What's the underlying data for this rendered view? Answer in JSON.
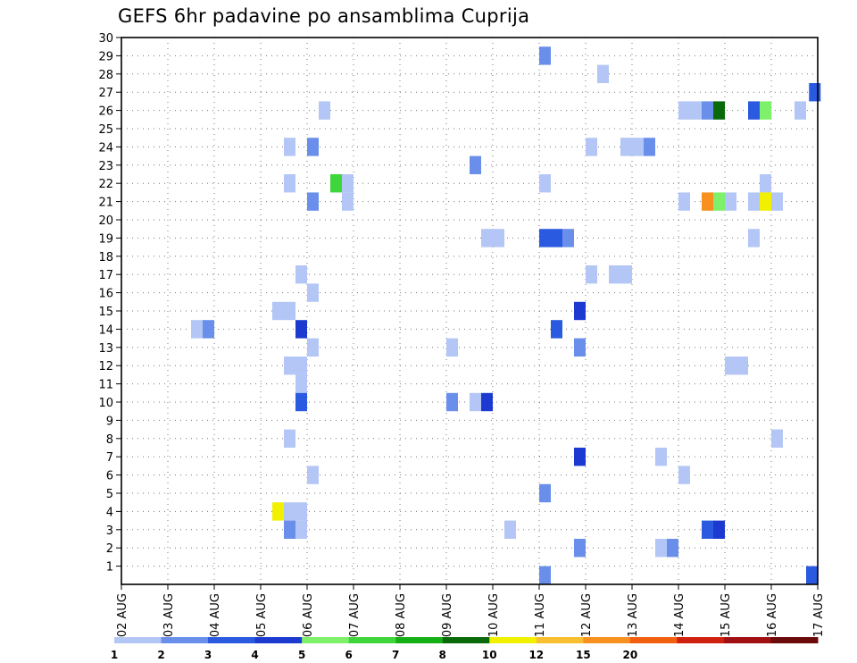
{
  "chart_data": {
    "type": "heatmap",
    "title": "GEFS 6hr padavine po ansamblima Cuprija",
    "xlabel": "",
    "ylabel": "",
    "x_tick_labels": [
      "02 AUG",
      "03 AUG",
      "04 AUG",
      "05 AUG",
      "06 AUG",
      "07 AUG",
      "08 AUG",
      "09 AUG",
      "10 AUG",
      "11 AUG",
      "12 AUG",
      "13 AUG",
      "14 AUG",
      "15 AUG",
      "16 AUG",
      "17 AUG"
    ],
    "x_unit": "6-hour step from 02 AUG 00Z",
    "x_range": [
      0,
      60
    ],
    "y_tick_labels": [
      "1",
      "2",
      "3",
      "4",
      "5",
      "6",
      "7",
      "8",
      "9",
      "10",
      "11",
      "12",
      "13",
      "14",
      "15",
      "16",
      "17",
      "18",
      "19",
      "20",
      "21",
      "22",
      "23",
      "24",
      "25",
      "26",
      "27",
      "28",
      "29",
      "30"
    ],
    "y_range": [
      0,
      30
    ],
    "grid": true,
    "colorbar": {
      "colors": [
        "#b3c6f5",
        "#6a8fea",
        "#2a5ae0",
        "#1c3ad0",
        "#7ef06a",
        "#3ed63a",
        "#16b016",
        "#0a6a0a",
        "#f0f000",
        "#f8c030",
        "#f89020",
        "#f06010",
        "#d02010",
        "#a01010",
        "#6a0a0a"
      ],
      "labels": [
        "1",
        "2",
        "3",
        "4",
        "5",
        "6",
        "7",
        "8",
        "10",
        "12",
        "15",
        "20"
      ]
    },
    "cells": [
      {
        "x": 36.5,
        "y": 29,
        "v": 2
      },
      {
        "x": 41.5,
        "y": 28,
        "v": 1
      },
      {
        "x": 59.75,
        "y": 27,
        "v": 3
      },
      {
        "x": 17.5,
        "y": 26,
        "v": 1
      },
      {
        "x": 48.5,
        "y": 26,
        "v": 1
      },
      {
        "x": 49.5,
        "y": 26,
        "v": 1
      },
      {
        "x": 50.5,
        "y": 26,
        "v": 2
      },
      {
        "x": 51.5,
        "y": 26,
        "v": 8
      },
      {
        "x": 54.5,
        "y": 26,
        "v": 3
      },
      {
        "x": 55.5,
        "y": 26,
        "v": 5
      },
      {
        "x": 58.5,
        "y": 26,
        "v": 1
      },
      {
        "x": 14.5,
        "y": 24,
        "v": 1
      },
      {
        "x": 16.5,
        "y": 24,
        "v": 2
      },
      {
        "x": 40.5,
        "y": 24,
        "v": 1
      },
      {
        "x": 43.5,
        "y": 24,
        "v": 1
      },
      {
        "x": 44.5,
        "y": 24,
        "v": 1
      },
      {
        "x": 45.5,
        "y": 24,
        "v": 2
      },
      {
        "x": 30.5,
        "y": 23,
        "v": 2
      },
      {
        "x": 14.5,
        "y": 22,
        "v": 1
      },
      {
        "x": 18.5,
        "y": 22,
        "v": 6
      },
      {
        "x": 19.5,
        "y": 22,
        "v": 1
      },
      {
        "x": 36.5,
        "y": 22,
        "v": 1
      },
      {
        "x": 55.5,
        "y": 22,
        "v": 1
      },
      {
        "x": 16.5,
        "y": 21,
        "v": 2
      },
      {
        "x": 19.5,
        "y": 21,
        "v": 1
      },
      {
        "x": 48.5,
        "y": 21,
        "v": 1
      },
      {
        "x": 50.5,
        "y": 21,
        "v": 15
      },
      {
        "x": 51.5,
        "y": 21,
        "v": 5
      },
      {
        "x": 52.5,
        "y": 21,
        "v": 1
      },
      {
        "x": 54.5,
        "y": 21,
        "v": 1
      },
      {
        "x": 55.5,
        "y": 21,
        "v": 10
      },
      {
        "x": 56.5,
        "y": 21,
        "v": 1
      },
      {
        "x": 31.5,
        "y": 19,
        "v": 1
      },
      {
        "x": 32.5,
        "y": 19,
        "v": 1
      },
      {
        "x": 36.5,
        "y": 19,
        "v": 3
      },
      {
        "x": 37.5,
        "y": 19,
        "v": 3
      },
      {
        "x": 38.5,
        "y": 19,
        "v": 2
      },
      {
        "x": 54.5,
        "y": 19,
        "v": 1
      },
      {
        "x": 15.5,
        "y": 17,
        "v": 1
      },
      {
        "x": 40.5,
        "y": 17,
        "v": 1
      },
      {
        "x": 42.5,
        "y": 17,
        "v": 1
      },
      {
        "x": 43.5,
        "y": 17,
        "v": 1
      },
      {
        "x": 16.5,
        "y": 16,
        "v": 1
      },
      {
        "x": 13.5,
        "y": 15,
        "v": 1
      },
      {
        "x": 14.5,
        "y": 15,
        "v": 1
      },
      {
        "x": 39.5,
        "y": 15,
        "v": 4
      },
      {
        "x": 6.5,
        "y": 14,
        "v": 1
      },
      {
        "x": 7.5,
        "y": 14,
        "v": 2
      },
      {
        "x": 15.5,
        "y": 14,
        "v": 4
      },
      {
        "x": 37.5,
        "y": 14,
        "v": 3
      },
      {
        "x": 16.5,
        "y": 13,
        "v": 1
      },
      {
        "x": 28.5,
        "y": 13,
        "v": 1
      },
      {
        "x": 39.5,
        "y": 13,
        "v": 2
      },
      {
        "x": 14.5,
        "y": 12,
        "v": 1
      },
      {
        "x": 15.5,
        "y": 12,
        "v": 1
      },
      {
        "x": 52.5,
        "y": 12,
        "v": 1
      },
      {
        "x": 53.5,
        "y": 12,
        "v": 1
      },
      {
        "x": 15.5,
        "y": 11,
        "v": 1
      },
      {
        "x": 15.5,
        "y": 10,
        "v": 3
      },
      {
        "x": 28.5,
        "y": 10,
        "v": 2
      },
      {
        "x": 30.5,
        "y": 10,
        "v": 1
      },
      {
        "x": 31.5,
        "y": 10,
        "v": 4
      },
      {
        "x": 14.5,
        "y": 8,
        "v": 1
      },
      {
        "x": 56.5,
        "y": 8,
        "v": 1
      },
      {
        "x": 39.5,
        "y": 7,
        "v": 4
      },
      {
        "x": 46.5,
        "y": 7,
        "v": 1
      },
      {
        "x": 16.5,
        "y": 6,
        "v": 1
      },
      {
        "x": 48.5,
        "y": 6,
        "v": 1
      },
      {
        "x": 36.5,
        "y": 5,
        "v": 2
      },
      {
        "x": 13.5,
        "y": 4,
        "v": 10
      },
      {
        "x": 14.5,
        "y": 4,
        "v": 1
      },
      {
        "x": 15.5,
        "y": 4,
        "v": 1
      },
      {
        "x": 14.5,
        "y": 3,
        "v": 2
      },
      {
        "x": 15.5,
        "y": 3,
        "v": 1
      },
      {
        "x": 33.5,
        "y": 3,
        "v": 1
      },
      {
        "x": 50.5,
        "y": 3,
        "v": 3
      },
      {
        "x": 51.5,
        "y": 3,
        "v": 4
      },
      {
        "x": 39.5,
        "y": 2,
        "v": 2
      },
      {
        "x": 46.5,
        "y": 2,
        "v": 1
      },
      {
        "x": 47.5,
        "y": 2,
        "v": 2
      },
      {
        "x": 36.5,
        "y": 0.5,
        "v": 2
      },
      {
        "x": 59.5,
        "y": 0.5,
        "v": 3
      }
    ]
  }
}
